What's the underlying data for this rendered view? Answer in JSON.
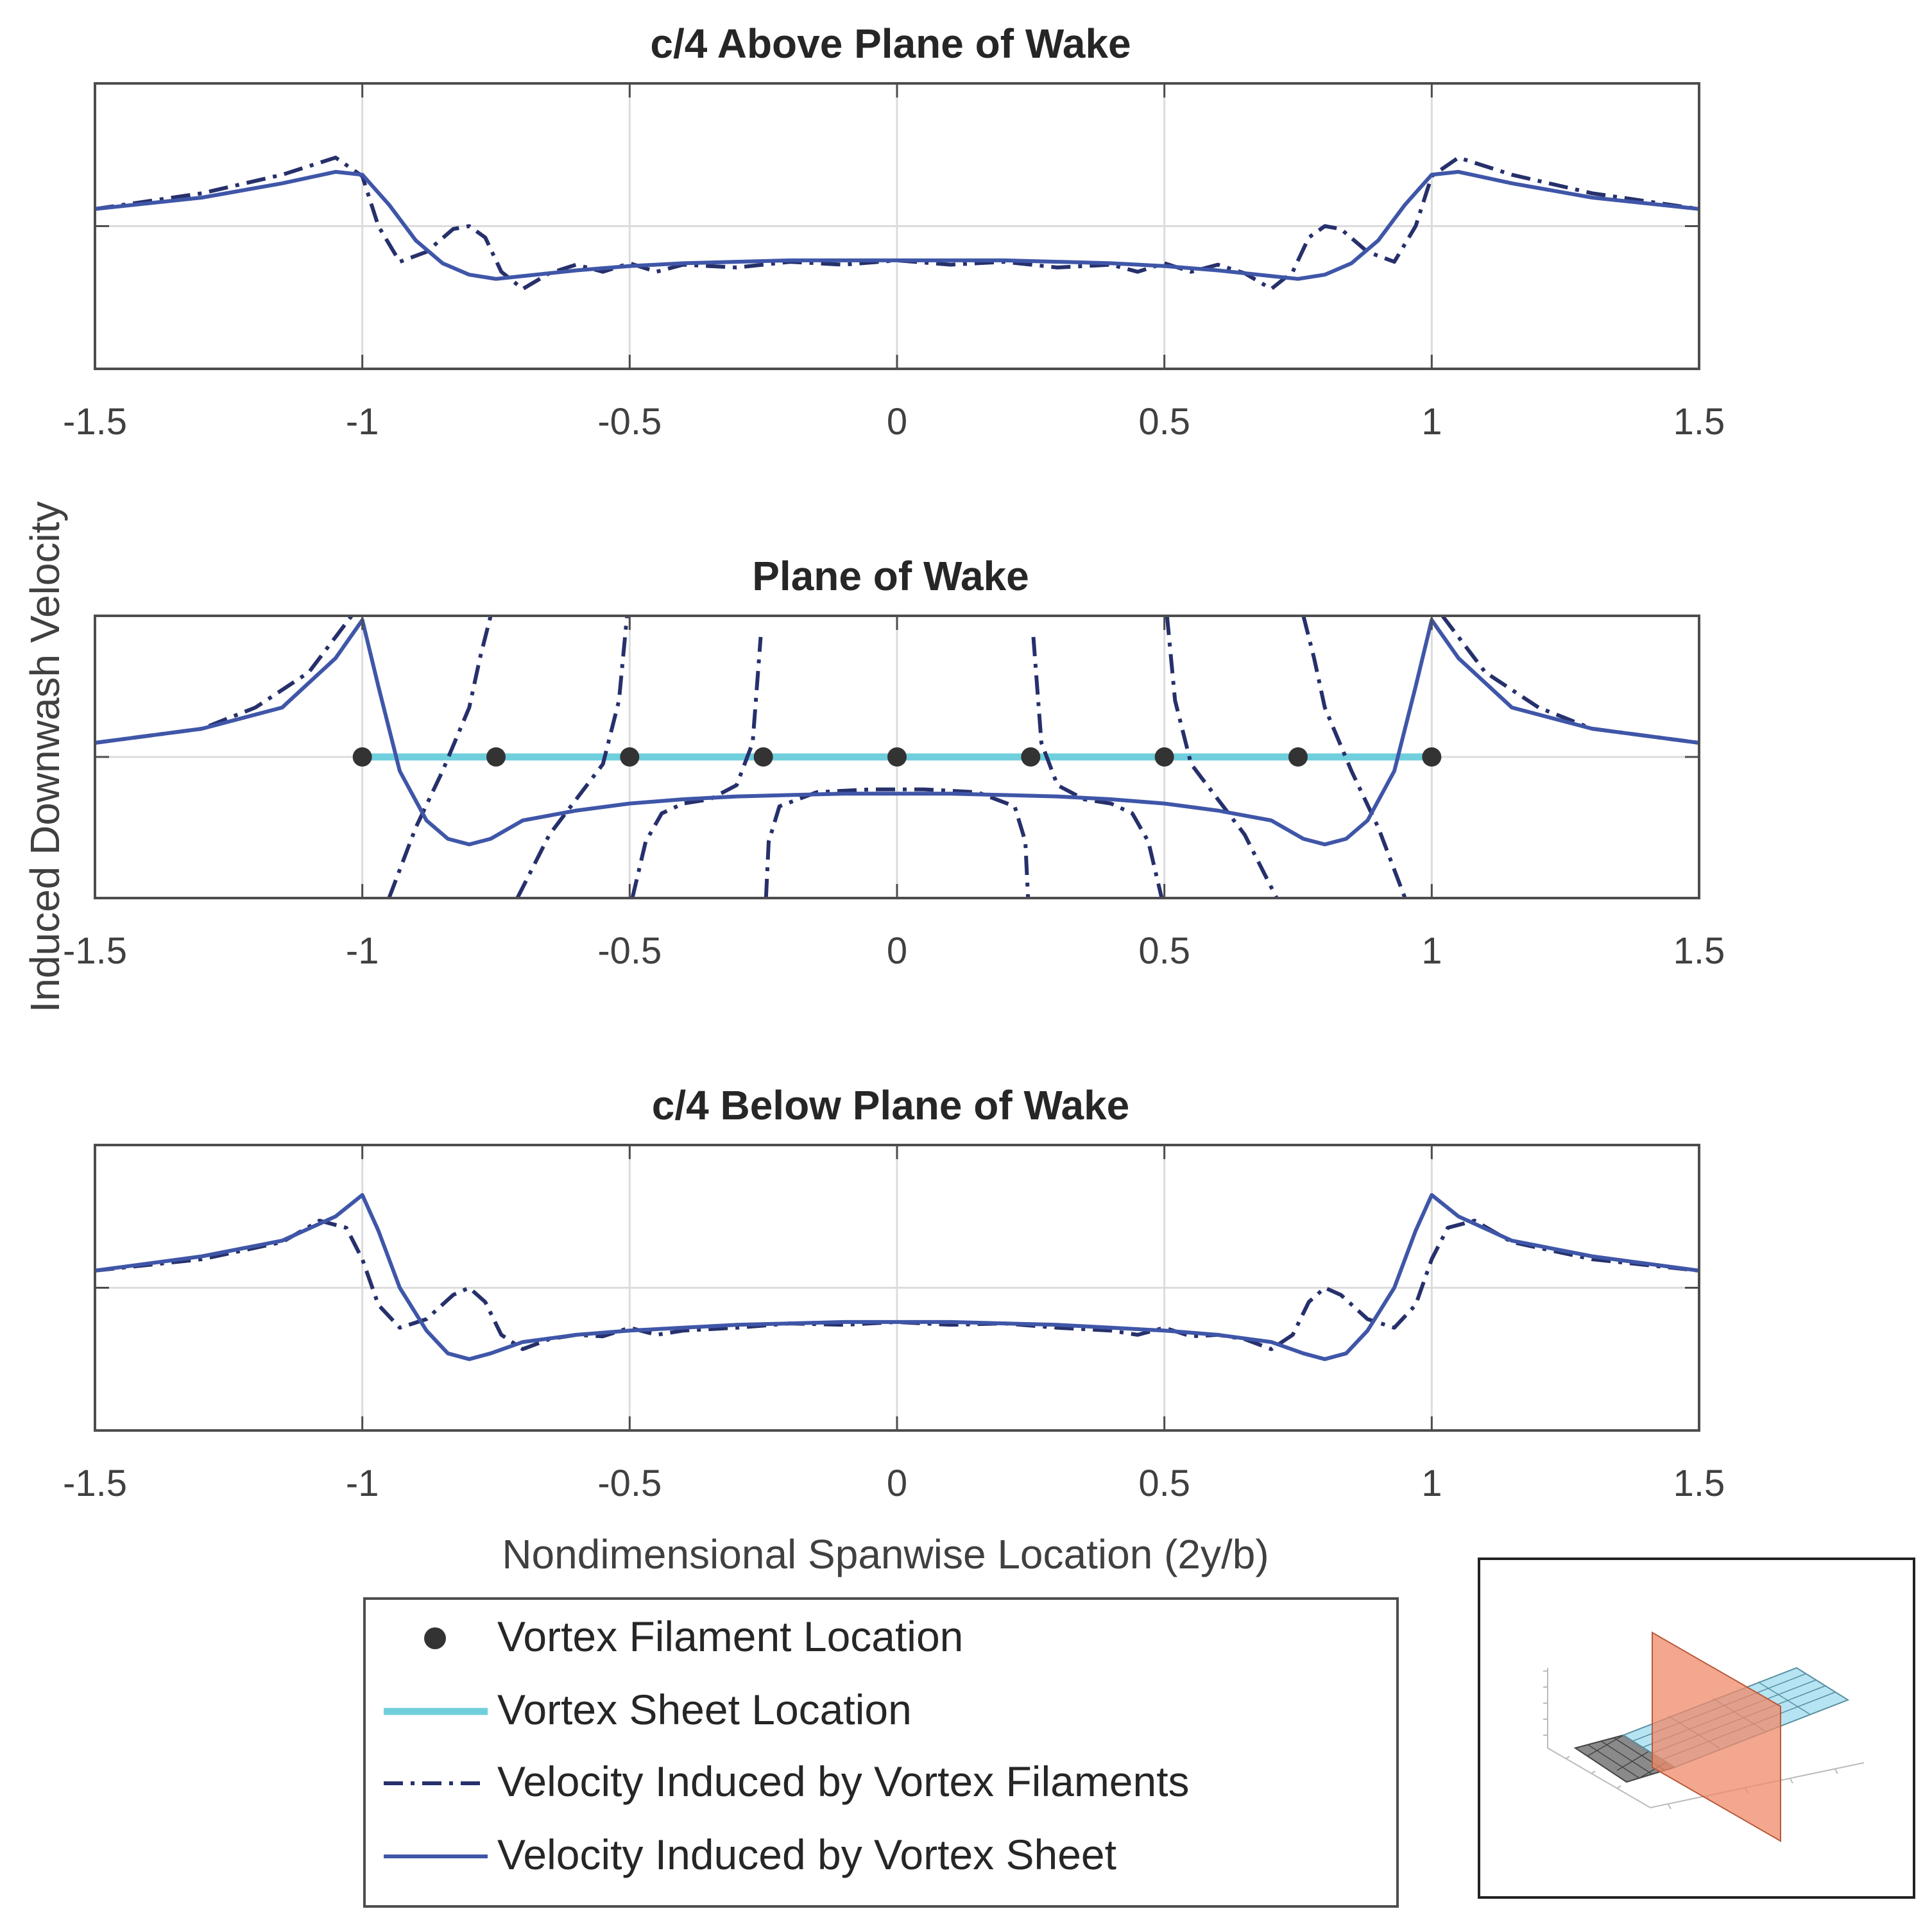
{
  "colors": {
    "filament_marker": "#333333",
    "sheet_location": "#6fcfdc",
    "filament_velocity": "#26306b",
    "sheet_velocity": "#3f56a8",
    "axis": "#4d4d4d",
    "grid": "#dcdcdc",
    "inset_sheet": "#a9dff0",
    "inset_plane": "#f08a6a",
    "inset_wing": "#707070"
  },
  "figure": {
    "ylabel": "Induced Downwash Velocity",
    "xlabel": "Nondimensional Spanwise Location (2y/b)"
  },
  "legend": {
    "entries": [
      {
        "label": "Vortex Filament Location",
        "style": "marker"
      },
      {
        "label": "Vortex Sheet Location",
        "style": "solid-thick"
      },
      {
        "label": "Velocity Induced by Vortex Filaments",
        "style": "dashdot"
      },
      {
        "label": "Velocity Induced by Vortex Sheet",
        "style": "solid"
      }
    ]
  },
  "inset": {
    "description_icon": "wake-geometry-3d-icon"
  },
  "chart_data": [
    {
      "type": "line",
      "title": "c/4 Above Plane of Wake",
      "xlim": [
        -1.5,
        1.5
      ],
      "ylim": [
        -1,
        1
      ],
      "xticks": [
        -1.5,
        -1,
        -0.5,
        0,
        0.5,
        1,
        1.5
      ],
      "xticklabels": [
        "-1.5",
        "-1",
        "-0.5",
        "0",
        "0.5",
        "1",
        "1.5"
      ],
      "yticks": [
        0
      ],
      "series": [
        {
          "name": "Velocity Induced by Vortex Filaments",
          "style": "dashdot",
          "x": [
            -1.5,
            -1.3,
            -1.15,
            -1.05,
            -1.0,
            -0.97,
            -0.93,
            -0.88,
            -0.83,
            -0.8,
            -0.77,
            -0.74,
            -0.7,
            -0.65,
            -0.6,
            -0.55,
            -0.5,
            -0.45,
            -0.4,
            -0.3,
            -0.2,
            -0.1,
            0,
            0.1,
            0.2,
            0.3,
            0.4,
            0.45,
            0.5,
            0.55,
            0.6,
            0.65,
            0.7,
            0.74,
            0.77,
            0.8,
            0.83,
            0.88,
            0.93,
            0.97,
            1.0,
            1.05,
            1.15,
            1.3,
            1.5
          ],
          "y": [
            0.12,
            0.23,
            0.36,
            0.48,
            0.35,
            0.0,
            -0.25,
            -0.18,
            -0.02,
            0.0,
            -0.08,
            -0.32,
            -0.44,
            -0.33,
            -0.27,
            -0.32,
            -0.26,
            -0.32,
            -0.27,
            -0.29,
            -0.25,
            -0.27,
            -0.24,
            -0.27,
            -0.25,
            -0.29,
            -0.27,
            -0.32,
            -0.26,
            -0.32,
            -0.27,
            -0.33,
            -0.44,
            -0.32,
            -0.08,
            0.0,
            -0.02,
            -0.18,
            -0.25,
            0.0,
            0.35,
            0.48,
            0.36,
            0.23,
            0.12
          ]
        },
        {
          "name": "Velocity Induced by Vortex Sheet",
          "style": "solid",
          "x": [
            -1.5,
            -1.3,
            -1.15,
            -1.05,
            -1.0,
            -0.95,
            -0.9,
            -0.85,
            -0.8,
            -0.75,
            -0.7,
            -0.6,
            -0.5,
            -0.4,
            -0.3,
            -0.2,
            -0.1,
            0,
            0.1,
            0.2,
            0.3,
            0.4,
            0.5,
            0.6,
            0.7,
            0.75,
            0.8,
            0.85,
            0.9,
            0.95,
            1.0,
            1.05,
            1.15,
            1.3,
            1.5
          ],
          "y": [
            0.12,
            0.2,
            0.3,
            0.38,
            0.36,
            0.15,
            -0.1,
            -0.26,
            -0.34,
            -0.37,
            -0.35,
            -0.31,
            -0.28,
            -0.26,
            -0.25,
            -0.24,
            -0.24,
            -0.24,
            -0.24,
            -0.24,
            -0.25,
            -0.26,
            -0.28,
            -0.31,
            -0.35,
            -0.37,
            -0.34,
            -0.26,
            -0.1,
            0.15,
            0.36,
            0.38,
            0.3,
            0.2,
            0.12
          ]
        }
      ]
    },
    {
      "type": "line",
      "title": "Plane of Wake",
      "xlim": [
        -1.5,
        1.5
      ],
      "ylim": [
        -1,
        1
      ],
      "xticks": [
        -1.5,
        -1,
        -0.5,
        0,
        0.5,
        1,
        1.5
      ],
      "xticklabels": [
        "-1.5",
        "-1",
        "-0.5",
        "0",
        "0.5",
        "1",
        "1.5"
      ],
      "yticks": [
        0
      ],
      "series": [
        {
          "name": "Vortex Filament Location",
          "style": "marker",
          "x": [
            -1,
            -0.75,
            -0.5,
            -0.25,
            0,
            0.25,
            0.5,
            0.75,
            1
          ],
          "y": [
            0,
            0,
            0,
            0,
            0,
            0,
            0,
            0,
            0
          ]
        },
        {
          "name": "Vortex Sheet Location",
          "style": "solid-thick",
          "x": [
            -1,
            1
          ],
          "y": [
            0,
            0
          ]
        },
        {
          "name": "Velocity Induced by Vortex Filaments",
          "style": "dashdot",
          "segments": [
            {
              "x": [
                -1.5,
                -1.3,
                -1.2,
                -1.1,
                -1.05,
                -1.02
              ],
              "y": [
                0.1,
                0.2,
                0.35,
                0.6,
                0.85,
                1.0
              ]
            },
            {
              "x": [
                -0.95,
                -0.9,
                -0.85,
                -0.8,
                -0.78,
                -0.76
              ],
              "y": [
                -1.0,
                -0.5,
                -0.1,
                0.35,
                0.7,
                1.0
              ]
            },
            {
              "x": [
                -0.71,
                -0.65,
                -0.6,
                -0.55,
                -0.52,
                -0.505
              ],
              "y": [
                -1.0,
                -0.55,
                -0.3,
                -0.05,
                0.4,
                1.0
              ]
            },
            {
              "x": [
                -0.495,
                -0.47,
                -0.44,
                -0.4,
                -0.35,
                -0.3,
                -0.27,
                -0.255
              ],
              "y": [
                -1.0,
                -0.6,
                -0.4,
                -0.33,
                -0.3,
                -0.2,
                0.1,
                0.85
              ]
            },
            {
              "x": [
                -0.245,
                -0.24,
                -0.22,
                -0.15,
                -0.05,
                0.05,
                0.15,
                0.22,
                0.24,
                0.245
              ],
              "y": [
                -1.0,
                -0.6,
                -0.35,
                -0.25,
                -0.23,
                -0.23,
                -0.25,
                -0.35,
                -0.6,
                -1.0
              ]
            },
            {
              "x": [
                0.255,
                0.27,
                0.3,
                0.35,
                0.4,
                0.44,
                0.47,
                0.495
              ],
              "y": [
                0.85,
                0.1,
                -0.2,
                -0.3,
                -0.33,
                -0.4,
                -0.6,
                -1.0
              ]
            },
            {
              "x": [
                0.505,
                0.52,
                0.55,
                0.6,
                0.65,
                0.71
              ],
              "y": [
                1.0,
                0.4,
                -0.05,
                -0.3,
                -0.55,
                -1.0
              ]
            },
            {
              "x": [
                0.76,
                0.78,
                0.8,
                0.85,
                0.9,
                0.95
              ],
              "y": [
                1.0,
                0.7,
                0.35,
                -0.1,
                -0.5,
                -1.0
              ]
            },
            {
              "x": [
                1.02,
                1.05,
                1.1,
                1.2,
                1.3,
                1.5
              ],
              "y": [
                1.0,
                0.85,
                0.6,
                0.35,
                0.2,
                0.1
              ]
            }
          ]
        },
        {
          "name": "Velocity Induced by Vortex Sheet",
          "style": "solid",
          "x": [
            -1.5,
            -1.3,
            -1.15,
            -1.05,
            -1.0,
            -0.97,
            -0.93,
            -0.88,
            -0.84,
            -0.8,
            -0.76,
            -0.7,
            -0.6,
            -0.5,
            -0.4,
            -0.3,
            -0.2,
            -0.1,
            0,
            0.1,
            0.2,
            0.3,
            0.4,
            0.5,
            0.6,
            0.7,
            0.76,
            0.8,
            0.84,
            0.88,
            0.93,
            0.97,
            1.0,
            1.05,
            1.15,
            1.3,
            1.5
          ],
          "y": [
            0.1,
            0.2,
            0.35,
            0.7,
            0.97,
            0.5,
            -0.1,
            -0.45,
            -0.58,
            -0.62,
            -0.58,
            -0.45,
            -0.38,
            -0.33,
            -0.3,
            -0.28,
            -0.27,
            -0.26,
            -0.26,
            -0.26,
            -0.27,
            -0.28,
            -0.3,
            -0.33,
            -0.38,
            -0.45,
            -0.58,
            -0.62,
            -0.58,
            -0.45,
            -0.1,
            0.5,
            0.97,
            0.7,
            0.35,
            0.2,
            0.1
          ]
        }
      ]
    },
    {
      "type": "line",
      "title": "c/4 Below Plane of Wake",
      "xlim": [
        -1.5,
        1.5
      ],
      "ylim": [
        -1,
        1
      ],
      "xticks": [
        -1.5,
        -1,
        -0.5,
        0,
        0.5,
        1,
        1.5
      ],
      "xticklabels": [
        "-1.5",
        "-1",
        "-0.5",
        "0",
        "0.5",
        "1",
        "1.5"
      ],
      "yticks": [
        0
      ],
      "series": [
        {
          "name": "Velocity Induced by Vortex Filaments",
          "style": "dashdot",
          "x": [
            -1.5,
            -1.3,
            -1.15,
            -1.08,
            -1.03,
            -1.0,
            -0.97,
            -0.93,
            -0.88,
            -0.83,
            -0.8,
            -0.77,
            -0.74,
            -0.7,
            -0.65,
            -0.6,
            -0.55,
            -0.5,
            -0.45,
            -0.4,
            -0.3,
            -0.2,
            -0.1,
            0,
            0.1,
            0.2,
            0.3,
            0.4,
            0.45,
            0.5,
            0.55,
            0.6,
            0.65,
            0.7,
            0.74,
            0.77,
            0.8,
            0.83,
            0.88,
            0.93,
            0.97,
            1.0,
            1.03,
            1.08,
            1.15,
            1.3,
            1.5
          ],
          "y": [
            0.12,
            0.2,
            0.32,
            0.47,
            0.42,
            0.2,
            -0.12,
            -0.28,
            -0.22,
            -0.05,
            0.0,
            -0.1,
            -0.33,
            -0.43,
            -0.36,
            -0.33,
            -0.34,
            -0.28,
            -0.33,
            -0.3,
            -0.28,
            -0.25,
            -0.26,
            -0.24,
            -0.26,
            -0.25,
            -0.28,
            -0.3,
            -0.33,
            -0.28,
            -0.34,
            -0.33,
            -0.36,
            -0.43,
            -0.33,
            -0.1,
            0.0,
            -0.05,
            -0.22,
            -0.28,
            -0.12,
            0.2,
            0.42,
            0.47,
            0.32,
            0.2,
            0.12
          ]
        },
        {
          "name": "Velocity Induced by Vortex Sheet",
          "style": "solid",
          "x": [
            -1.5,
            -1.3,
            -1.15,
            -1.05,
            -1.0,
            -0.97,
            -0.93,
            -0.88,
            -0.84,
            -0.8,
            -0.76,
            -0.7,
            -0.6,
            -0.5,
            -0.4,
            -0.3,
            -0.2,
            -0.1,
            0,
            0.1,
            0.2,
            0.3,
            0.4,
            0.5,
            0.6,
            0.7,
            0.76,
            0.8,
            0.84,
            0.88,
            0.93,
            0.97,
            1.0,
            1.05,
            1.15,
            1.3,
            1.5
          ],
          "y": [
            0.12,
            0.22,
            0.33,
            0.5,
            0.65,
            0.4,
            0.0,
            -0.3,
            -0.46,
            -0.5,
            -0.46,
            -0.38,
            -0.33,
            -0.3,
            -0.28,
            -0.26,
            -0.25,
            -0.24,
            -0.24,
            -0.24,
            -0.25,
            -0.26,
            -0.28,
            -0.3,
            -0.33,
            -0.38,
            -0.46,
            -0.5,
            -0.46,
            -0.3,
            0.0,
            0.4,
            0.65,
            0.5,
            0.33,
            0.22,
            0.12
          ]
        }
      ]
    }
  ]
}
